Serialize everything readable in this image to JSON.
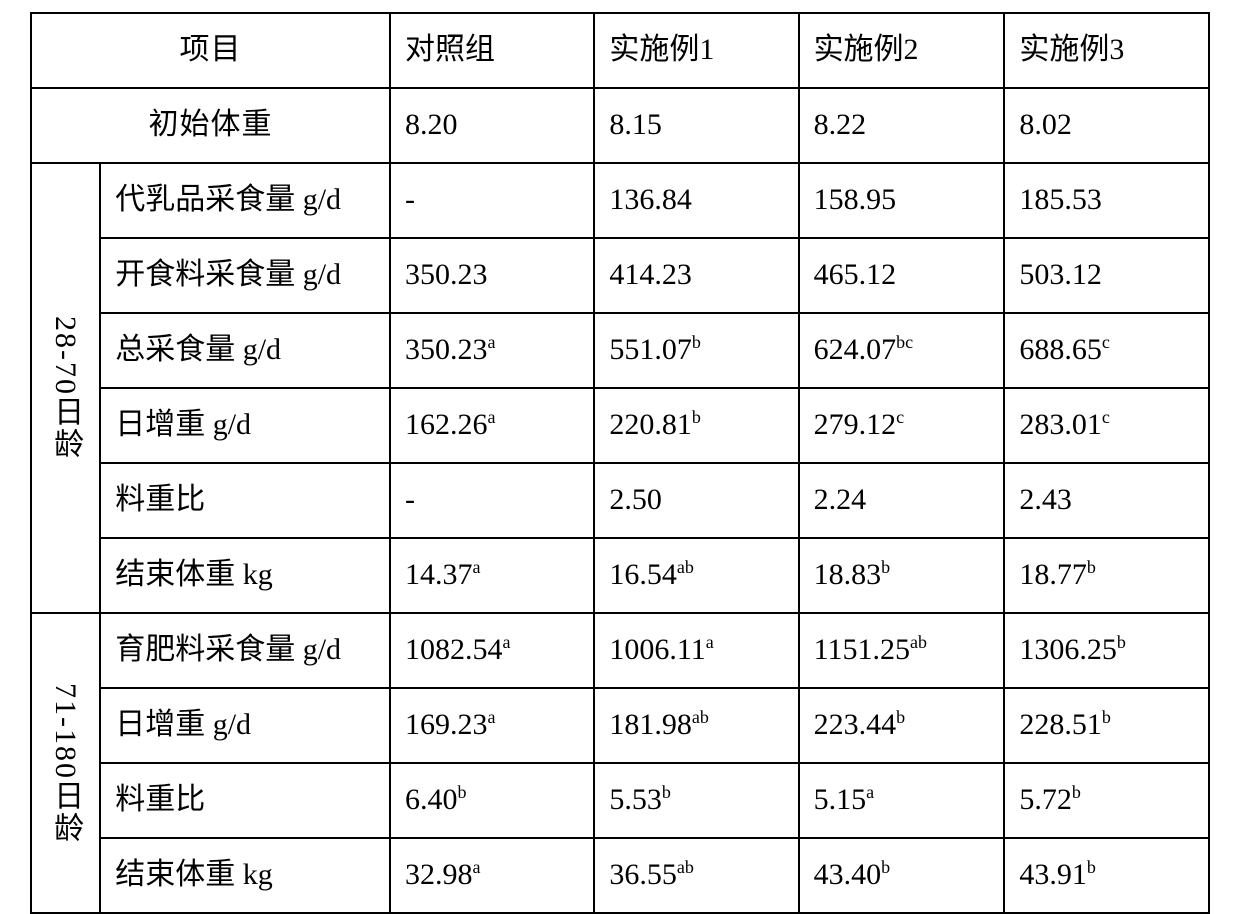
{
  "table": {
    "columns": {
      "item": "项目",
      "control": "对照组",
      "ex1": "实施例1",
      "ex2": "实施例2",
      "ex3": "实施例3"
    },
    "initial_weight": {
      "label": "初始体重",
      "control": "8.20",
      "ex1": "8.15",
      "ex2": "8.22",
      "ex3": "8.02"
    },
    "group1": {
      "label": "28-70日龄",
      "rows": {
        "milk_replacer_intake": {
          "label": "代乳品采食量 g/d",
          "control": "-",
          "ex1": "136.84",
          "ex2": "158.95",
          "ex3": "185.53"
        },
        "starter_intake": {
          "label": "开食料采食量 g/d",
          "control": "350.23",
          "ex1": "414.23",
          "ex2": "465.12",
          "ex3": "503.12"
        },
        "total_intake": {
          "label": "总采食量 g/d",
          "control": "350.23",
          "control_sup": "a",
          "ex1": "551.07",
          "ex1_sup": "b",
          "ex2": "624.07",
          "ex2_sup": "bc",
          "ex3": "688.65",
          "ex3_sup": "c"
        },
        "daily_gain": {
          "label": "日增重 g/d",
          "control": "162.26",
          "control_sup": "a",
          "ex1": "220.81",
          "ex1_sup": "b",
          "ex2": "279.12",
          "ex2_sup": "c",
          "ex3": "283.01",
          "ex3_sup": "c"
        },
        "feed_ratio": {
          "label": "料重比",
          "control": "-",
          "ex1": "2.50",
          "ex2": "2.24",
          "ex3": "2.43"
        },
        "end_weight": {
          "label": "结束体重 kg",
          "control": "14.37",
          "control_sup": "a",
          "ex1": "16.54",
          "ex1_sup": "ab",
          "ex2": "18.83",
          "ex2_sup": "b",
          "ex3": "18.77",
          "ex3_sup": "b"
        }
      }
    },
    "group2": {
      "label": "71-180日龄",
      "rows": {
        "fattening_intake": {
          "label": "育肥料采食量 g/d",
          "control": "1082.54",
          "control_sup": "a",
          "ex1": "1006.11",
          "ex1_sup": "a",
          "ex2": "1151.25",
          "ex2_sup": "ab",
          "ex3": "1306.25",
          "ex3_sup": "b"
        },
        "daily_gain": {
          "label": "日增重 g/d",
          "control": "169.23",
          "control_sup": "a",
          "ex1": "181.98",
          "ex1_sup": "ab",
          "ex2": "223.44",
          "ex2_sup": "b",
          "ex3": "228.51",
          "ex3_sup": "b"
        },
        "feed_ratio": {
          "label": "料重比",
          "control": "6.40",
          "control_sup": "b",
          "ex1": "5.53",
          "ex1_sup": "b",
          "ex2": "5.15",
          "ex2_sup": "a",
          "ex3": "5.72",
          "ex3_sup": "b"
        },
        "end_weight": {
          "label": "结束体重 kg",
          "control": "32.98",
          "control_sup": "a",
          "ex1": "36.55",
          "ex1_sup": "ab",
          "ex2": "43.40",
          "ex2_sup": "b",
          "ex3": "43.91",
          "ex3_sup": "b"
        }
      }
    }
  }
}
